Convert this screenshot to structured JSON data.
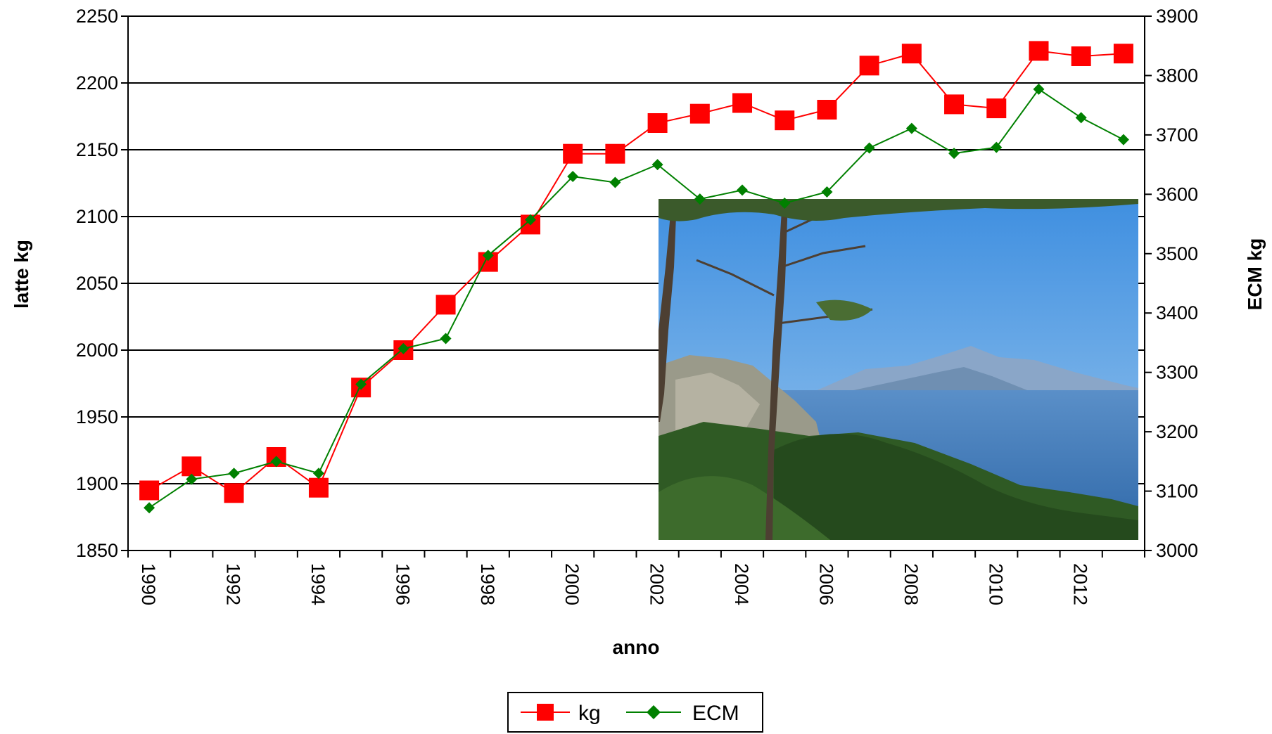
{
  "chart_data": {
    "type": "line",
    "title": "",
    "xlabel": "anno",
    "ylabel": "latte kg",
    "y2label": "ECM kg",
    "x": [
      1990,
      1991,
      1992,
      1993,
      1994,
      1995,
      1996,
      1997,
      1998,
      1999,
      2000,
      2001,
      2002,
      2003,
      2004,
      2005,
      2006,
      2007,
      2008,
      2009,
      2010,
      2011,
      2012,
      2013
    ],
    "x_tick_labels": [
      "1990",
      "1992",
      "1994",
      "1996",
      "1998",
      "2000",
      "2002",
      "2004",
      "2006",
      "2008",
      "2010",
      "2012"
    ],
    "ylim": [
      1850,
      2250
    ],
    "y_ticks": [
      "1850",
      "1900",
      "1950",
      "2000",
      "2050",
      "2100",
      "2150",
      "2200",
      "2250"
    ],
    "y2lim": [
      3000,
      3900
    ],
    "y2_ticks": [
      "3000",
      "3100",
      "3200",
      "3300",
      "3400",
      "3500",
      "3600",
      "3700",
      "3800",
      "3900"
    ],
    "grid": "horizontal",
    "legend_position": "bottom",
    "series": [
      {
        "name": "kg",
        "axis": "left",
        "color": "#ff0000",
        "marker": "square",
        "values": [
          1895,
          1913,
          1893,
          1920,
          1897,
          1972,
          2000,
          2034,
          2066,
          2094,
          2147,
          2147,
          2170,
          2177,
          2185,
          2172,
          2180,
          2213,
          2222,
          2184,
          2181,
          2224,
          2220,
          2222
        ]
      },
      {
        "name": "ECM",
        "axis": "right",
        "color": "#008000",
        "marker": "diamond",
        "values": [
          3072,
          3120,
          3130,
          3150,
          3130,
          3280,
          3340,
          3357,
          3497,
          3557,
          3630,
          3620,
          3650,
          3592,
          3607,
          3585,
          3604,
          3678,
          3711,
          3669,
          3679,
          3777,
          3729,
          3692
        ]
      }
    ]
  },
  "inset_photo": {
    "subject": "landscape-sea-cliffs-pines",
    "sky_color": "#5ea3e0",
    "sea_color": "#3a78b8",
    "foliage_color": "#2f5a24"
  }
}
